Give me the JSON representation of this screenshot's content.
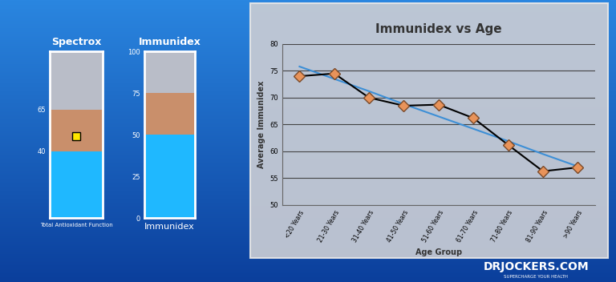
{
  "chart_data": [
    {
      "type": "bar",
      "stacked": true,
      "title": "Spectrox",
      "xlabel": "Total Antioxidant Function",
      "ylim": [
        0,
        100
      ],
      "yticks": [
        40,
        65
      ],
      "tick_labels": "y",
      "grid": false,
      "series": [
        {
          "color": "#1fb8ff",
          "values": [
            40
          ]
        },
        {
          "color": "#c98f6b",
          "values": [
            25
          ]
        },
        {
          "color": "#b9bdc8",
          "values": [
            35
          ]
        }
      ],
      "points": [
        49
      ],
      "marker": "square",
      "color": "#ffe600"
    },
    {
      "type": "bar",
      "stacked": true,
      "title": "Immunidex",
      "xlabel": "Immunidex",
      "ylim": [
        0,
        100
      ],
      "yticks": [
        0,
        25,
        50,
        75,
        100
      ],
      "tick_labels": "y",
      "grid": false,
      "series": [
        {
          "color": "#1fb8ff",
          "values": [
            50
          ]
        },
        {
          "color": "#c98f6b",
          "values": [
            25
          ]
        },
        {
          "color": "#b9bdc8",
          "values": [
            25
          ]
        }
      ]
    },
    {
      "type": "line",
      "title": "Immunidex vs Age",
      "xlabel": "Age Group",
      "ylabel": "Average Immunidex",
      "categories": [
        "<20 Years",
        "21-30 Years",
        "31-40 Years",
        "41-50 Years",
        "51-60 Years",
        "61-70 Years",
        "71-80 Years",
        "81-90 Years",
        ">90 Years"
      ],
      "ylim": [
        50,
        80
      ],
      "yticks": [
        50,
        55,
        60,
        65,
        70,
        75,
        80
      ],
      "grid": true,
      "series": [
        {
          "color": "#e8935a",
          "marker": "diamond",
          "line_style": "solid",
          "values": [
            74,
            74.5,
            70,
            68.5,
            68.7,
            66.2,
            61.2,
            56.3,
            57
          ]
        },
        {
          "color": "#3d8fd6",
          "marker": "none",
          "line_style": "solid",
          "values": [
            75.8,
            73.5,
            71.2,
            68.8,
            66.5,
            64.2,
            61.9,
            59.5,
            57.2
          ]
        }
      ]
    }
  ],
  "logo": {
    "text": "DRJOCKERS.COM",
    "tagline": "SUPERCHARGE YOUR HEALTH"
  }
}
